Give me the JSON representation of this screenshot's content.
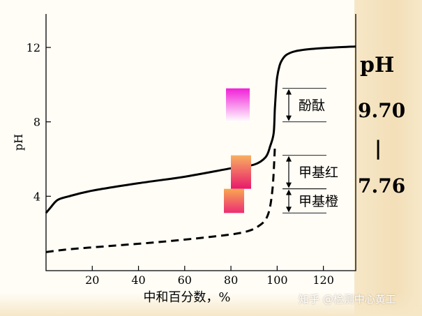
{
  "chart_data": {
    "type": "line",
    "title": "",
    "xlabel": "中和百分数，%",
    "ylabel": "pH",
    "xlim": [
      0,
      134
    ],
    "ylim": [
      0,
      13.8
    ],
    "x_ticks": [
      "20",
      "40",
      "60",
      "80",
      "100",
      "120"
    ],
    "y_ticks": [
      "4",
      "8",
      "12"
    ],
    "grid": false,
    "series": [
      {
        "style": "solid",
        "x": [
          0,
          2,
          5,
          10,
          20,
          40,
          60,
          80,
          90,
          95,
          97,
          98.5,
          99,
          99.5,
          100,
          101,
          102,
          104,
          108,
          115,
          125,
          134
        ],
        "y": [
          3.1,
          3.4,
          3.8,
          4.0,
          4.3,
          4.7,
          5.05,
          5.5,
          5.7,
          6.1,
          6.7,
          7.4,
          8.7,
          9.7,
          10.4,
          11.0,
          11.3,
          11.6,
          11.8,
          11.92,
          12.0,
          12.05
        ]
      },
      {
        "style": "dashed",
        "x": [
          0,
          10,
          30,
          50,
          70,
          85,
          92,
          96,
          98,
          99
        ],
        "y": [
          1.0,
          1.15,
          1.35,
          1.55,
          1.8,
          2.05,
          2.4,
          3.0,
          4.4,
          6.6
        ]
      }
    ],
    "indicator_ranges": [
      {
        "name": "酚酞",
        "low": 8.0,
        "high": 9.8,
        "color_top": "#f020d8",
        "color_bottom": "#ffffff"
      },
      {
        "name": "甲基红",
        "low": 4.4,
        "high": 6.2,
        "color_top": "#f8b060",
        "color_bottom": "#e8186c"
      },
      {
        "name": "甲基橙",
        "low": 3.1,
        "high": 4.4,
        "color_top": "#f8a850",
        "color_bottom": "#ec2c74"
      }
    ]
  },
  "side_panel": {
    "title": "pH",
    "value_high": "9.70",
    "separator": "|",
    "value_low": "7.76"
  },
  "watermark": "知乎 @检测中心黄工",
  "colors": {
    "curve": "#000000",
    "background": "#fffdf6",
    "panel": "#f6e7c7"
  }
}
